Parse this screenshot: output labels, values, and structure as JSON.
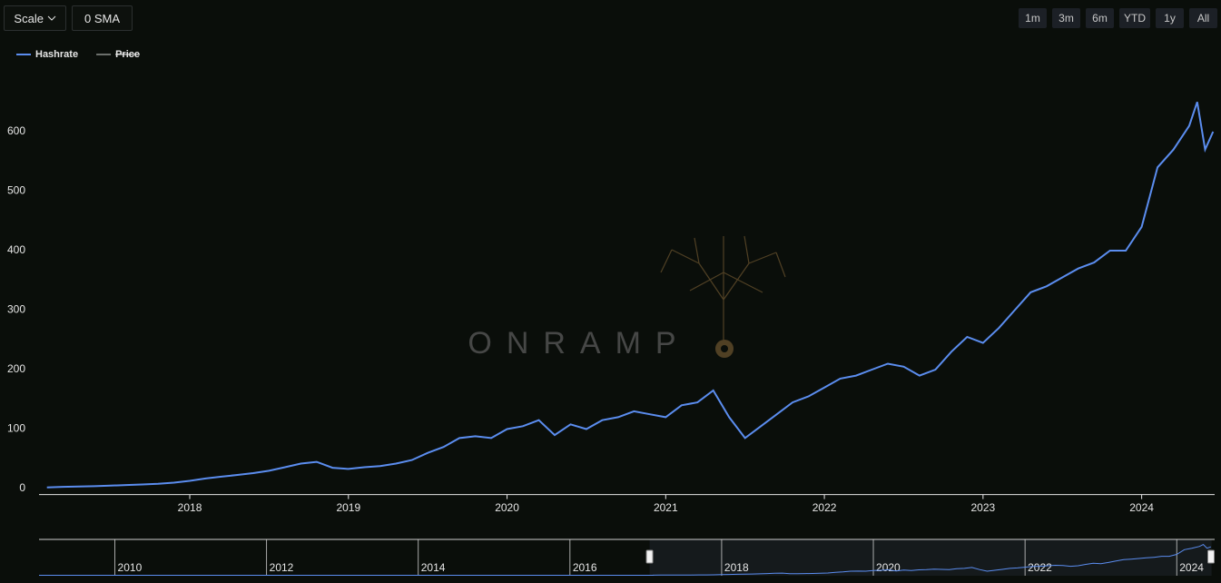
{
  "controls": {
    "scale": "Scale",
    "sma": "0 SMA",
    "ranges": [
      "1m",
      "3m",
      "6m",
      "YTD",
      "1y",
      "All"
    ]
  },
  "watermark": "ONRAMP",
  "chart_data": {
    "type": "line",
    "x": [
      2017.1,
      2017.2,
      2017.3,
      2017.4,
      2017.5,
      2017.6,
      2017.7,
      2017.8,
      2017.9,
      2018.0,
      2018.1,
      2018.2,
      2018.3,
      2018.4,
      2018.5,
      2018.6,
      2018.7,
      2018.8,
      2018.9,
      2019.0,
      2019.1,
      2019.2,
      2019.3,
      2019.4,
      2019.5,
      2019.6,
      2019.7,
      2019.8,
      2019.9,
      2020.0,
      2020.1,
      2020.2,
      2020.3,
      2020.4,
      2020.5,
      2020.6,
      2020.7,
      2020.8,
      2020.9,
      2021.0,
      2021.1,
      2021.2,
      2021.3,
      2021.4,
      2021.5,
      2021.6,
      2021.7,
      2021.8,
      2021.9,
      2022.0,
      2022.1,
      2022.2,
      2022.3,
      2022.4,
      2022.5,
      2022.6,
      2022.7,
      2022.8,
      2022.9,
      2023.0,
      2023.1,
      2023.2,
      2023.3,
      2023.4,
      2023.5,
      2023.6,
      2023.7,
      2023.8,
      2023.9,
      2024.0,
      2024.1,
      2024.2,
      2024.3,
      2024.35,
      2024.4,
      2024.45
    ],
    "series": [
      {
        "name": "Hashrate",
        "color": "#5b8def",
        "values": [
          2,
          3,
          3.5,
          4,
          5,
          6,
          7,
          8,
          10,
          13,
          17,
          20,
          23,
          26,
          30,
          36,
          42,
          45,
          35,
          33,
          36,
          38,
          42,
          48,
          60,
          70,
          85,
          88,
          85,
          100,
          105,
          115,
          90,
          108,
          100,
          115,
          120,
          130,
          125,
          120,
          140,
          145,
          165,
          120,
          85,
          105,
          125,
          145,
          155,
          170,
          185,
          190,
          200,
          210,
          205,
          190,
          200,
          230,
          255,
          245,
          270,
          300,
          330,
          340,
          355,
          370,
          380,
          400,
          400,
          440,
          540,
          570,
          610,
          650,
          570,
          600
        ]
      },
      {
        "name": "Price",
        "color": "#6b6f6b",
        "hidden": true
      }
    ],
    "xlim": [
      2017.05,
      2024.46
    ],
    "xticks": [
      2018,
      2019,
      2020,
      2021,
      2022,
      2023,
      2024
    ],
    "ylim": [
      -10,
      680
    ],
    "yticks": [
      0,
      100,
      200,
      300,
      400,
      500,
      600
    ],
    "navigator": {
      "xlim": [
        2009,
        2024.5
      ],
      "xticks": [
        2010,
        2012,
        2014,
        2016,
        2018,
        2020,
        2022,
        2024
      ]
    }
  }
}
